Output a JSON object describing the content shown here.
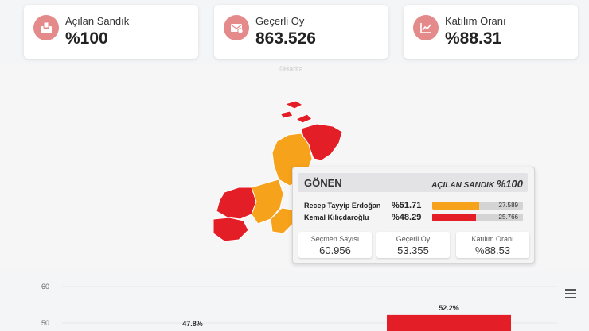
{
  "stats": [
    {
      "label": "Açılan Sandık",
      "value": "%100",
      "icon": "ballot-box-icon"
    },
    {
      "label": "Geçerli Oy",
      "value": "863.526",
      "icon": "envelope-check-icon"
    },
    {
      "label": "Katılım Oranı",
      "value": "%88.31",
      "icon": "trend-chart-icon"
    }
  ],
  "map_credit": "©Harita",
  "colors": {
    "red": "#e41e26",
    "orange": "#f7a21b",
    "accent": "#e58a8a"
  },
  "tooltip": {
    "district": "GÖNEN",
    "opened_label": "AÇILAN SANDIK",
    "opened_value": "%100",
    "candidates": [
      {
        "name": "Recep Tayyip Erdoğan",
        "percent": "%51.71",
        "votes": "27.589",
        "share": 51.71,
        "color": "#f7a21b"
      },
      {
        "name": "Kemal Kılıçdaroğlu",
        "percent": "%48.29",
        "votes": "25.766",
        "share": 48.29,
        "color": "#e41e26"
      }
    ],
    "boxes": [
      {
        "label": "Seçmen Sayısı",
        "value": "60.956"
      },
      {
        "label": "Geçerli Oy",
        "value": "53.355"
      },
      {
        "label": "Katılım Oranı",
        "value": "%88.53"
      }
    ]
  },
  "chart_data": {
    "type": "bar",
    "y_ticks": [
      60,
      50
    ],
    "ylim": [
      0,
      60
    ],
    "data_labels": [
      "47.8%",
      "52.2%"
    ],
    "values": [
      47.8,
      52.2
    ],
    "colors": [
      "#f7a21b",
      "#e41e26"
    ]
  },
  "menu_icon": "hamburger-menu-icon"
}
